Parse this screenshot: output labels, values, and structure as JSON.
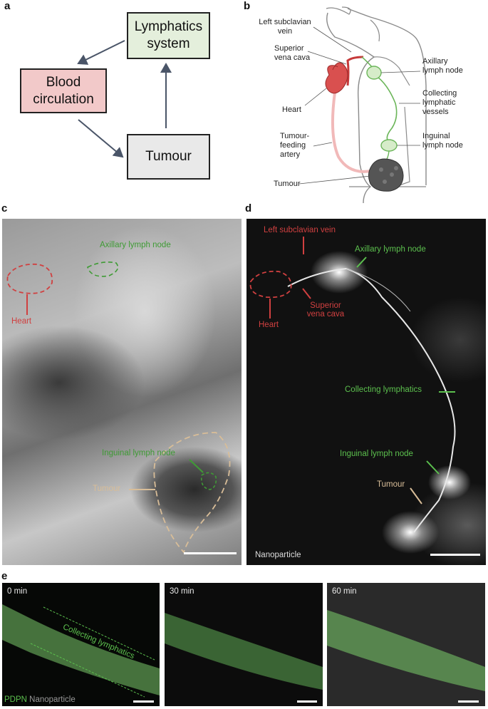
{
  "panel_a": {
    "label": "a",
    "boxes": {
      "lymphatics": "Lymphatics system",
      "blood": "Blood circulation",
      "tumour": "Tumour"
    },
    "colors": {
      "lymphatics": "#e4efdc",
      "blood": "#f2c9c9",
      "tumour": "#e9e9e9",
      "arrow": "#4a5568"
    }
  },
  "panel_b": {
    "label": "b",
    "labels": {
      "left_subclavian_vein": "Left subclavian vein",
      "superior_vena_cava": "Superior vena cava",
      "heart": "Heart",
      "tumour_feeding_artery": "Tumour-feeding artery",
      "tumour": "Tumour",
      "axillary_lymph_node": "Axillary lymph node",
      "collecting_lymphatic_vessels": "Collecting lymphatic vessels",
      "inguinal_lymph_node": "Inguinal lymph node"
    },
    "colors": {
      "vessel": "#c63a3a",
      "lymph": "#6cb65a",
      "artery": "#f1b9b9",
      "tumour": "#555555",
      "outline": "#8a8a8a"
    }
  },
  "panel_c": {
    "label": "c",
    "annotations": {
      "heart": "Heart",
      "axillary_lymph_node": "Axillary lymph node",
      "inguinal_lymph_node": "Inguinal lymph node",
      "tumour": "Tumour"
    },
    "colors": {
      "heart": "#d04040",
      "lymph": "#3f9b35",
      "tumour": "#d8bd98"
    }
  },
  "panel_d": {
    "label": "d",
    "annotations": {
      "left_subclavian_vein": "Left subclavian vein",
      "superior_vena_cava": "Superior vena cava",
      "heart": "Heart",
      "axillary_lymph_node": "Axillary lymph node",
      "collecting_lymphatics": "Collecting lymphatics",
      "inguinal_lymph_node": "Inguinal lymph node",
      "tumour": "Tumour"
    },
    "channel_label": "Nanoparticle",
    "colors": {
      "heart": "#d04040",
      "lymph": "#5cc04e",
      "tumour": "#d8bd98"
    }
  },
  "panel_e": {
    "label": "e",
    "timepoints": [
      "0 min",
      "30 min",
      "60 min"
    ],
    "vessel_label": "Collecting lymphatics",
    "legend": {
      "pdpn": "PDPN",
      "nanoparticle": "Nanoparticle"
    },
    "colors": {
      "pdpn": "#5cc04e",
      "nanoparticle": "#9a9a9a"
    }
  }
}
